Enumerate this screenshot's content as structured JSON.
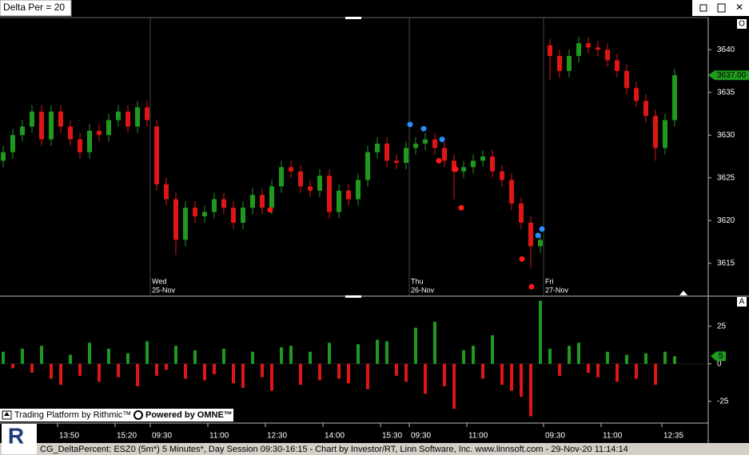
{
  "window": {
    "title": "Delta Per = 20"
  },
  "chart_data": [
    {
      "type": "candlestick",
      "panel_label": "O",
      "x": [
        1,
        4,
        7,
        10,
        13,
        16,
        19,
        22,
        25,
        28,
        31,
        34,
        37,
        40,
        43,
        46,
        49,
        52,
        55,
        58,
        61,
        64,
        67,
        70,
        73,
        76,
        79,
        82,
        85,
        88,
        91,
        94,
        97,
        100,
        103,
        106,
        109,
        112,
        115,
        118,
        121,
        124,
        127,
        130,
        133,
        136,
        139,
        142,
        145,
        148,
        151,
        154,
        157,
        160,
        163,
        166,
        169,
        172,
        175,
        178,
        181,
        184,
        187,
        190,
        193,
        196,
        199,
        202,
        205,
        208,
        211
      ],
      "open": [
        3627,
        3628,
        3630,
        3631,
        3632.75,
        3629.5,
        3632.75,
        3631,
        3629.5,
        3628,
        3630.5,
        3630,
        3631.75,
        3632.75,
        3631,
        3633.25,
        3631,
        3624.25,
        3622.5,
        3617.75,
        3621.5,
        3620.5,
        3621,
        3622.5,
        3621.5,
        3619.75,
        3621.5,
        3623,
        3621.5,
        3624,
        3626.25,
        3625.75,
        3624,
        3623.5,
        3625.25,
        3621,
        3623.5,
        3622.5,
        3624.75,
        3628,
        3629,
        3627,
        3626.75,
        3628.5,
        3629,
        3629.5,
        3628.5,
        3627,
        3625.75,
        3626.25,
        3627,
        3627.5,
        3625.75,
        3624.75,
        3622,
        3619.75,
        3617,
        3640.5,
        3639.25,
        3637.5,
        3639.25,
        3640.75,
        3640.25,
        3640,
        3638.75,
        3637.5,
        3635.5,
        3634,
        3632.25,
        3628.5,
        3631.75
      ],
      "high": [
        3628.75,
        3630.75,
        3631.75,
        3633.5,
        3633.5,
        3633.5,
        3633.5,
        3631.75,
        3630.25,
        3631.25,
        3631.25,
        3632.5,
        3633.5,
        3633.5,
        3634,
        3634,
        3631.75,
        3625,
        3623.25,
        3622.25,
        3622.25,
        3621.75,
        3623.25,
        3623.25,
        3622.25,
        3622.25,
        3623.75,
        3623.75,
        3624.75,
        3627,
        3627,
        3626.5,
        3624.75,
        3626,
        3626,
        3624.25,
        3624.25,
        3625.5,
        3628.75,
        3629.75,
        3629.75,
        3627.75,
        3629.25,
        3629.75,
        3630.25,
        3630.25,
        3629.25,
        3627.75,
        3627,
        3627.75,
        3628.25,
        3628.25,
        3626.5,
        3625.5,
        3622.75,
        3620.5,
        3618.5,
        3641.25,
        3640,
        3640,
        3641.5,
        3641.5,
        3641,
        3640.75,
        3639.5,
        3638.25,
        3636.25,
        3634.75,
        3633,
        3632.5,
        3637.75
      ],
      "low": [
        3626.25,
        3627.25,
        3629.25,
        3630.25,
        3628.75,
        3628.75,
        3630.25,
        3628.75,
        3627.25,
        3627.25,
        3629.25,
        3629.25,
        3631,
        3630.25,
        3630.25,
        3631,
        3623.5,
        3621.75,
        3616,
        3617,
        3619.75,
        3619.75,
        3620.25,
        3620.75,
        3619,
        3619,
        3620.75,
        3620.75,
        3620.75,
        3623.25,
        3625,
        3623.25,
        3622.75,
        3622.75,
        3620.25,
        3620.25,
        3621.75,
        3621.75,
        3624,
        3627.25,
        3626.25,
        3626,
        3626,
        3627.75,
        3628.25,
        3627.75,
        3626.25,
        3622.5,
        3625,
        3625.5,
        3626.25,
        3625,
        3624,
        3621.25,
        3619,
        3614.5,
        3616.25,
        3636.5,
        3636.75,
        3636.75,
        3638.5,
        3639.5,
        3639.25,
        3638,
        3636.75,
        3634.75,
        3633.25,
        3631.5,
        3627,
        3627.75,
        3631
      ],
      "close": [
        3628,
        3630,
        3631,
        3632.75,
        3629.5,
        3632.75,
        3631,
        3629.5,
        3628,
        3630.5,
        3630,
        3631.75,
        3632.75,
        3631,
        3633.25,
        3631.75,
        3624.25,
        3622.5,
        3617.75,
        3621.5,
        3620.5,
        3621,
        3622.5,
        3621.5,
        3619.75,
        3621.5,
        3623,
        3621.5,
        3624,
        3626.25,
        3625.75,
        3624,
        3623.5,
        3625.25,
        3621,
        3623.5,
        3622.5,
        3624.75,
        3628,
        3629,
        3627,
        3626.75,
        3628.5,
        3629,
        3629.5,
        3628.5,
        3627,
        3625.75,
        3626.25,
        3627,
        3627.5,
        3625.75,
        3624.75,
        3622,
        3619.75,
        3617,
        3617.75,
        3639.25,
        3637.5,
        3639.25,
        3640.75,
        3640.25,
        3640,
        3638.75,
        3637.5,
        3635.5,
        3634,
        3632.25,
        3628.5,
        3631.75,
        3637
      ],
      "up_color": "#1f9a1f",
      "down_color": "#e01515",
      "xlim": [
        0,
        221
      ],
      "ylim": [
        3611.25,
        3643.75
      ],
      "yticks": [
        3615,
        3620,
        3625,
        3630,
        3635,
        3640
      ],
      "last_price": {
        "value": 3637,
        "label": "3637.00"
      },
      "day_labels": [
        {
          "day": "Wed",
          "date": "25-Nov",
          "x": 47
        },
        {
          "day": "Thu",
          "date": "26-Nov",
          "x": 128
        },
        {
          "day": "Fri",
          "date": "27-Nov",
          "x": 170
        }
      ],
      "buy_signals": {
        "color": "#2a8cff",
        "x": [
          128.25,
          132.5,
          138.25,
          168.25,
          169.5
        ],
        "values": [
          3631.25,
          3630.75,
          3629.5,
          3618.25,
          3619
        ]
      },
      "sell_signals": {
        "color": "#ff1a1a",
        "x": [
          84.5,
          137.25,
          142.5,
          144.25,
          163.25,
          166.25
        ],
        "values": [
          3621.25,
          3627,
          3626,
          3621.5,
          3615.5,
          3612.25
        ]
      }
    },
    {
      "type": "bar",
      "panel_label": "A",
      "x": [
        1,
        4,
        7,
        10,
        13,
        16,
        19,
        22,
        25,
        28,
        31,
        34,
        37,
        40,
        43,
        46,
        49,
        52,
        55,
        58,
        61,
        64,
        67,
        70,
        73,
        76,
        79,
        82,
        85,
        88,
        91,
        94,
        97,
        100,
        103,
        106,
        109,
        112,
        115,
        118,
        121,
        124,
        127,
        130,
        133,
        136,
        139,
        142,
        145,
        148,
        151,
        154,
        157,
        160,
        163,
        166,
        169,
        172,
        175,
        178,
        181,
        184,
        187,
        190,
        193,
        196,
        199,
        202,
        205,
        208,
        211
      ],
      "values": [
        8,
        -3,
        10,
        -6,
        12,
        -10,
        -14,
        6,
        -8,
        14,
        -12,
        10,
        -9,
        7,
        -15,
        15,
        -8,
        -4,
        12,
        -10,
        9,
        -11,
        -7,
        10,
        -13,
        -16,
        8,
        -9,
        -18,
        11,
        12,
        -14,
        8,
        -11,
        14,
        -10,
        -13,
        13,
        -17,
        16,
        15,
        -8,
        -12,
        24,
        -20,
        28,
        -15,
        -30,
        9,
        12,
        -10,
        19,
        -14,
        -18,
        -22,
        -35,
        42,
        10,
        -8,
        12,
        14,
        -6,
        -9,
        8,
        -12,
        6,
        -10,
        7,
        -14,
        8,
        5
      ],
      "pos_color": "#1f9a1f",
      "neg_color": "#e01515",
      "xlim": [
        0,
        221
      ],
      "ylim": [
        -39.5,
        44.5
      ],
      "yticks": [
        25,
        0,
        -25
      ],
      "xticks": [
        {
          "value": 18,
          "label": "13:50"
        },
        {
          "value": 36,
          "label": "15:20"
        },
        {
          "value": 47,
          "label": "09:30"
        },
        {
          "value": 65,
          "label": "11:00"
        },
        {
          "value": 83,
          "label": "12:30"
        },
        {
          "value": 101,
          "label": "14:00"
        },
        {
          "value": 119,
          "label": "15:30"
        },
        {
          "value": 128,
          "label": "09:30"
        },
        {
          "value": 146,
          "label": "11:00"
        },
        {
          "value": 170,
          "label": "09:30"
        },
        {
          "value": 188,
          "label": "11:00"
        },
        {
          "value": 207,
          "label": "12:35"
        }
      ]
    }
  ],
  "badges": [
    "Trading Platform by Rithmic™",
    "Powered by OMNE™"
  ],
  "logo": "R",
  "status": "CG_DeltaPercent: ESZ0 (5m*) 5 Minutes*, Day Session 09:30-16:15 - Chart by Investor/RT, Linn Software, Inc. www.linnsoft.com - 29-Nov-20 11:14:14"
}
